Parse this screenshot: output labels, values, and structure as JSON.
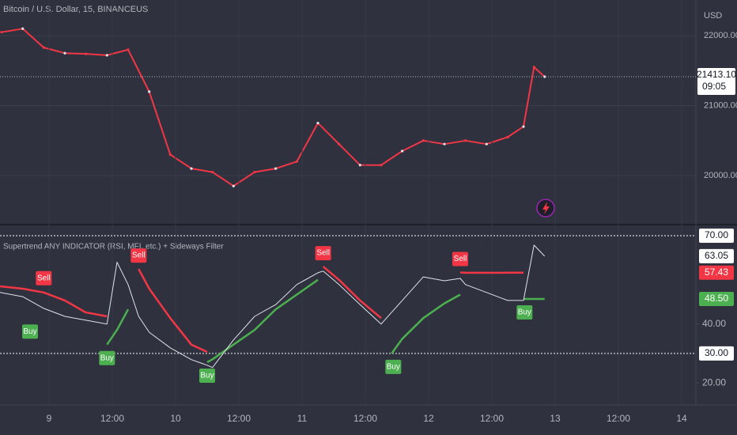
{
  "chart_data": [
    {
      "type": "line",
      "title": "Bitcoin / U.S. Dollar, 15, BINANCEUS",
      "y_axis_label": "USD",
      "x": [
        -9,
        -5,
        -1,
        3,
        7,
        11,
        15,
        19,
        23,
        27,
        31,
        35,
        39,
        43,
        47,
        51,
        55,
        59,
        63,
        67,
        71,
        75,
        79,
        83,
        87,
        90,
        92,
        94
      ],
      "values": [
        22050,
        22100,
        21830,
        21750,
        21740,
        21720,
        21800,
        21200,
        20300,
        20100,
        20050,
        19850,
        20050,
        20100,
        20200,
        20750,
        20450,
        20150,
        20150,
        20350,
        20500,
        20450,
        20500,
        20450,
        20550,
        20700,
        21550,
        21413.1
      ],
      "color": "#f23645",
      "xlim": [
        -9.3,
        122.7
      ],
      "ylim": [
        19310,
        22510
      ],
      "yticks": [
        {
          "value": 20000,
          "label": "20000.00"
        },
        {
          "value": 21000,
          "label": "21000.00"
        },
        {
          "value": 22000,
          "label": "22000.00"
        }
      ],
      "grid": true,
      "last_price": {
        "value": 21413.1,
        "label": "21413.10"
      },
      "countdown": "09:05"
    },
    {
      "type": "supertrend",
      "title": "Supertrend ANY INDICATOR (RSI, MFI, etc.) + Sideways Filter",
      "x": [
        -9.3,
        -5,
        -1,
        3,
        6.9,
        11,
        12.9,
        15,
        17,
        19,
        23,
        27,
        30,
        31,
        35,
        39,
        43,
        47,
        51,
        52,
        55,
        59,
        63,
        65,
        67,
        71,
        75,
        78,
        79,
        83,
        87,
        90,
        92,
        94
      ],
      "rsi": {
        "color": "#e0e3eb",
        "values": [
          50.7,
          49.3,
          45.3,
          42.6,
          41.3,
          40,
          61,
          53.4,
          42.6,
          37.2,
          31.9,
          27.9,
          26,
          25.2,
          34.6,
          42.6,
          46.6,
          53.4,
          57.4,
          58,
          53.4,
          46.6,
          40,
          44,
          48,
          56,
          54.7,
          55.5,
          53.4,
          50.7,
          48,
          48,
          66.8,
          63.05
        ]
      },
      "up": {
        "color": "#4caf50",
        "values": [
          null,
          null,
          null,
          null,
          null,
          33,
          38,
          45,
          null,
          null,
          null,
          null,
          27,
          28,
          33,
          38,
          45,
          50,
          55,
          null,
          null,
          null,
          null,
          30,
          35,
          42,
          47,
          50,
          null,
          null,
          null,
          48.5,
          48.5,
          48.5
        ]
      },
      "down": {
        "color": "#f23645",
        "values": [
          52.8,
          52,
          50.7,
          48,
          44,
          42.6,
          null,
          null,
          58.7,
          52,
          42,
          33,
          30.5,
          null,
          null,
          null,
          null,
          null,
          null,
          59.5,
          55,
          48,
          42,
          null,
          null,
          null,
          null,
          57.5,
          57.4,
          57.4,
          57.43,
          57.43,
          null,
          null
        ]
      },
      "signals": [
        {
          "text": "Buy",
          "x": -3.6,
          "value": 42
        },
        {
          "text": "Sell",
          "x": -1,
          "value": 51
        },
        {
          "text": "Buy",
          "x": 11,
          "value": 33
        },
        {
          "text": "Sell",
          "x": 17,
          "value": 58.7
        },
        {
          "text": "Buy",
          "x": 30,
          "value": 27
        },
        {
          "text": "Sell",
          "x": 52,
          "value": 59.5
        },
        {
          "text": "Buy",
          "x": 65.3,
          "value": 30
        },
        {
          "text": "Sell",
          "x": 78,
          "value": 57.5
        },
        {
          "text": "Buy",
          "x": 90.2,
          "value": 48.5
        }
      ],
      "bands": [
        {
          "value": 70,
          "label": "70.00"
        },
        {
          "value": 30,
          "label": "30.00"
        }
      ],
      "badges": [
        {
          "value": 63.05,
          "label": "63.05",
          "color": "#ffffff"
        },
        {
          "value": 57.43,
          "label": "57.43",
          "color": "#f23645"
        },
        {
          "value": 48.5,
          "label": "48.50",
          "color": "#4caf50"
        }
      ],
      "xlim": [
        -9.3,
        122.7
      ],
      "ylim": [
        12.5,
        73.5
      ],
      "yticks": [
        {
          "value": 20,
          "label": "20.00"
        },
        {
          "value": 40,
          "label": "40.00"
        }
      ],
      "xticks": [
        {
          "value": 0,
          "label": "9"
        },
        {
          "value": 12,
          "label": "12:00"
        },
        {
          "value": 24,
          "label": "10"
        },
        {
          "value": 36,
          "label": "12:00"
        },
        {
          "value": 48,
          "label": "11"
        },
        {
          "value": 60,
          "label": "12:00"
        },
        {
          "value": 72,
          "label": "12"
        },
        {
          "value": 84,
          "label": "12:00"
        },
        {
          "value": 96,
          "label": "13"
        },
        {
          "value": 108,
          "label": "12:00"
        },
        {
          "value": 120,
          "label": "14"
        }
      ]
    }
  ]
}
